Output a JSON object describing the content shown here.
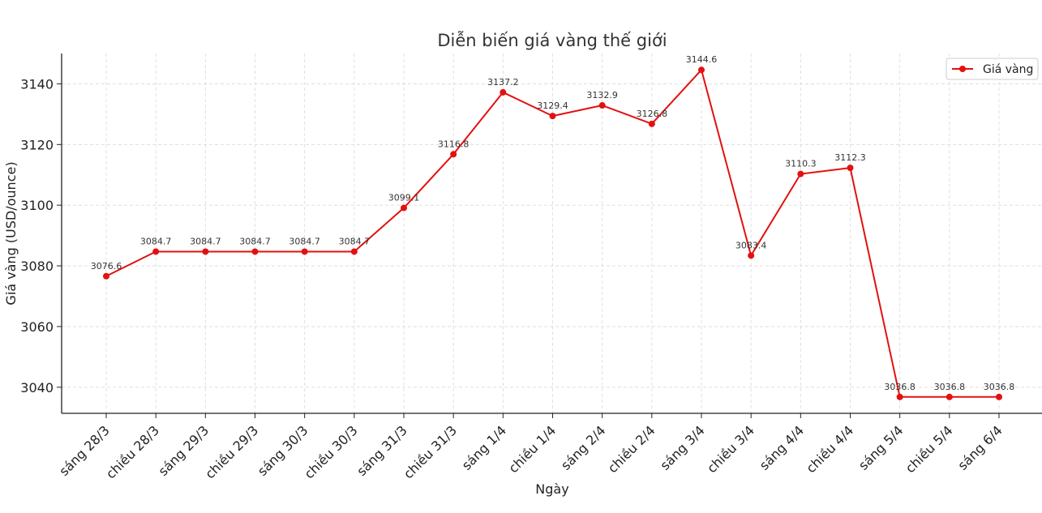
{
  "chart_data": {
    "type": "line",
    "title": "Diễn biến giá vàng thế giới",
    "xlabel": "Ngày",
    "ylabel": "Giá vàng (USD/ounce)",
    "categories": [
      "sáng 28/3",
      "chiều 28/3",
      "sáng 29/3",
      "chiều 29/3",
      "sáng 30/3",
      "chiều 30/3",
      "sáng 31/3",
      "chiều 31/3",
      "sáng 1/4",
      "chiều 1/4",
      "sáng 2/4",
      "chiều 2/4",
      "sáng 3/4",
      "chiều 3/4",
      "sáng 4/4",
      "chiều 4/4",
      "sáng 5/4",
      "chiều 5/4",
      "sáng 6/4"
    ],
    "series": [
      {
        "name": "Giá vàng",
        "color": "#e41010",
        "values": [
          3076.6,
          3084.7,
          3084.7,
          3084.7,
          3084.7,
          3084.7,
          3099.1,
          3116.8,
          3137.2,
          3129.4,
          3132.9,
          3126.8,
          3144.6,
          3083.4,
          3110.3,
          3112.3,
          3036.8,
          3036.8,
          3036.8
        ],
        "labels": [
          "3076.6",
          "3084.7",
          "3084.7",
          "3084.7",
          "3084.7",
          "3084.7",
          "3099.1",
          "3116.8",
          "3137.2",
          "3129.4",
          "3132.9",
          "3126.8",
          "3144.6",
          "3083.4",
          "3110.3",
          "3112.3",
          "3036.8",
          "3036.8",
          "3036.8"
        ]
      }
    ],
    "yticks": [
      "3040",
      "3060",
      "3080",
      "3100",
      "3120",
      "3140"
    ],
    "ylim": [
      3031.4,
      3150
    ],
    "grid": true,
    "legend": "top-right"
  }
}
